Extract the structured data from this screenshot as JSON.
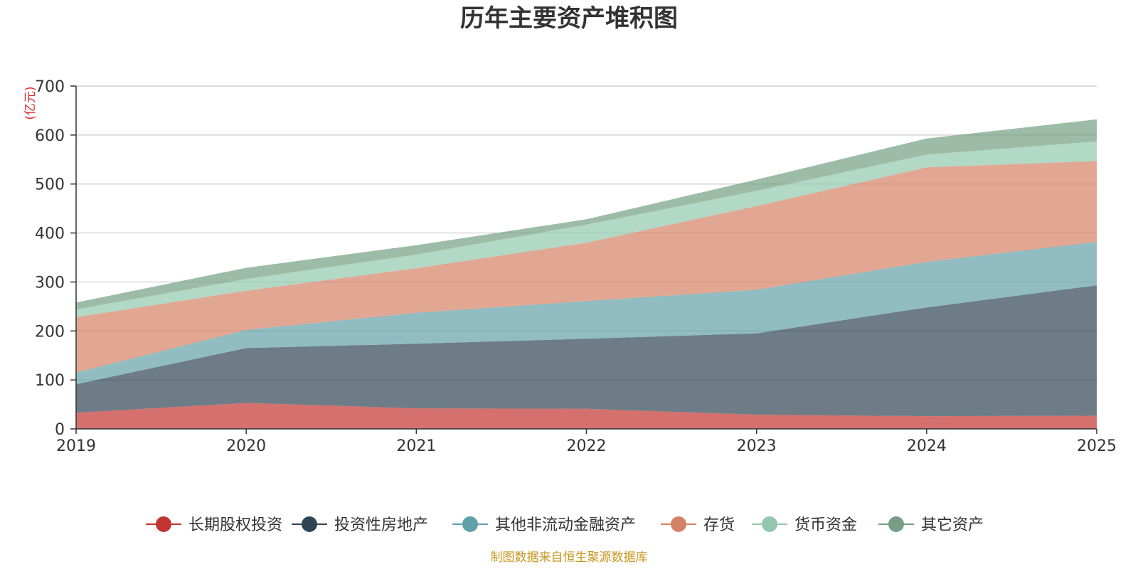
{
  "chart_data": {
    "type": "area",
    "stacked": true,
    "title": "历年主要资产堆积图",
    "unit_label": "(亿元)",
    "x": [
      "2019",
      "2020",
      "2021",
      "2022",
      "2023",
      "2024",
      "2025"
    ],
    "ylim": [
      0,
      700
    ],
    "yticks": [
      "0",
      "100",
      "200",
      "300",
      "400",
      "500",
      "600",
      "700"
    ],
    "grid": true,
    "legend_position": "bottom",
    "series": [
      {
        "name": "长期股权投资",
        "color": "#c23531",
        "values": [
          33,
          53,
          42,
          41,
          29,
          26,
          27
        ]
      },
      {
        "name": "投资性房地产",
        "color": "#2f4554",
        "values": [
          58,
          112,
          132,
          143,
          166,
          222,
          266
        ]
      },
      {
        "name": "其他非流动金融资产",
        "color": "#61a0a8",
        "values": [
          24,
          37,
          63,
          77,
          89,
          93,
          89
        ]
      },
      {
        "name": "存货",
        "color": "#d48265",
        "values": [
          113,
          80,
          91,
          119,
          171,
          193,
          165
        ]
      },
      {
        "name": "货币资金",
        "color": "#91c7ae",
        "values": [
          16,
          24,
          28,
          37,
          31,
          26,
          40
        ]
      },
      {
        "name": "其它资产",
        "color": "#749f83",
        "values": [
          14,
          23,
          19,
          11,
          23,
          33,
          45
        ]
      }
    ]
  },
  "footer": {
    "source": "制图数据来自恒生聚源数据库"
  }
}
